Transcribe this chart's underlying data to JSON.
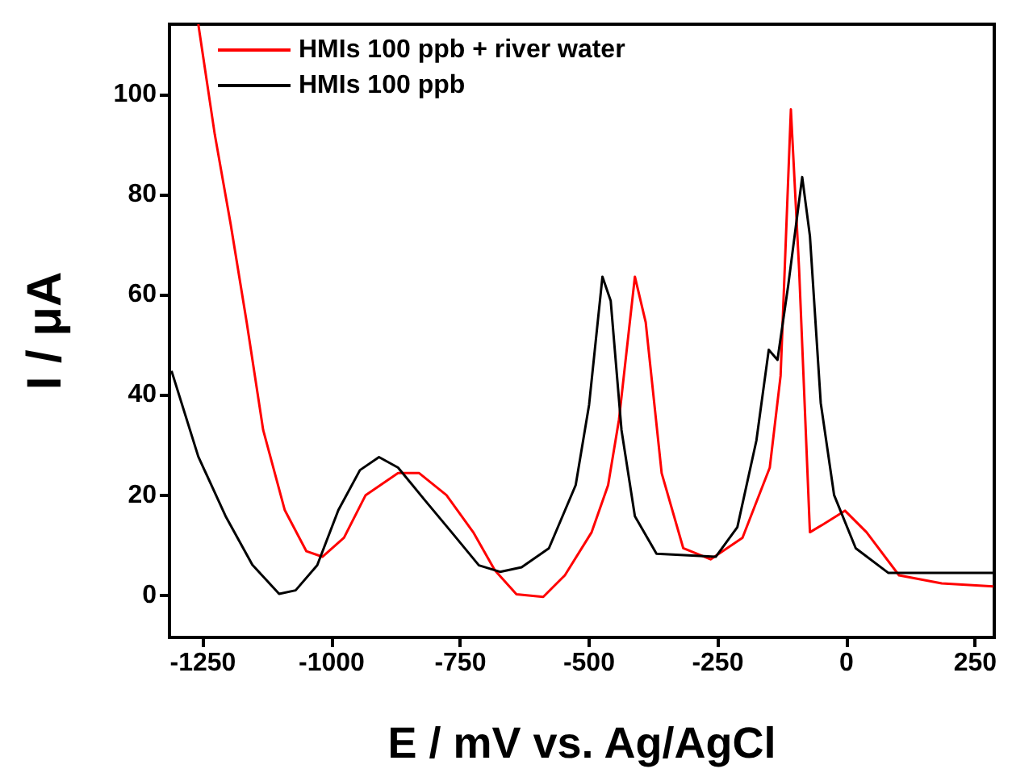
{
  "chart_data": {
    "type": "line",
    "xlabel": "E / mV vs. Ag/AgCl",
    "ylabel": "I / μA",
    "xlim": [
      -1315,
      287
    ],
    "ylim": [
      -8.4,
      114
    ],
    "xticks": [
      -1250,
      -1000,
      -750,
      -500,
      -250,
      0,
      250
    ],
    "yticks": [
      0,
      20,
      40,
      60,
      80,
      100
    ],
    "grid": false,
    "legend": "top left",
    "marker": "none",
    "series": [
      {
        "name": "HMIs 100 ppb + river water",
        "color": "#ff0000",
        "x": [
          -1259,
          -1227,
          -1196,
          -1165,
          -1133,
          -1091,
          -1049,
          -1018,
          -976,
          -934,
          -871,
          -830,
          -777,
          -725,
          -683,
          -641,
          -589,
          -547,
          -495,
          -463,
          -442,
          -411,
          -390,
          -359,
          -317,
          -264,
          -202,
          -149,
          -128,
          -108,
          -92,
          -71,
          -45,
          -3,
          39,
          102,
          185,
          285
        ],
        "values": [
          114,
          92,
          74,
          54.5,
          33,
          17,
          8.8,
          7.7,
          11.5,
          20,
          24.4,
          24.4,
          20,
          12.6,
          5,
          0.2,
          -0.3,
          4,
          12.6,
          22,
          35,
          63.6,
          54.5,
          24.4,
          9.4,
          7.2,
          11.5,
          25.5,
          43.8,
          97,
          65,
          12.6,
          14.2,
          16.9,
          12.6,
          4,
          2.4,
          1.8
        ]
      },
      {
        "name": "HMIs 100 ppb",
        "color": "#000000",
        "x": [
          -1311,
          -1259,
          -1206,
          -1154,
          -1102,
          -1070,
          -1028,
          -987,
          -945,
          -908,
          -871,
          -819,
          -767,
          -714,
          -673,
          -631,
          -578,
          -526,
          -500,
          -474,
          -458,
          -437,
          -411,
          -369,
          -254,
          -212,
          -175,
          -151,
          -134,
          -113,
          -86,
          -71,
          -50,
          -24,
          18,
          81,
          285
        ],
        "values": [
          44.8,
          27.7,
          15.8,
          6.1,
          0.3,
          1,
          6,
          17,
          25,
          27.6,
          25.5,
          19,
          12.6,
          6,
          4.7,
          5.6,
          9.4,
          22,
          38,
          63.6,
          58.8,
          33,
          15.8,
          8.3,
          7.7,
          13.6,
          30.9,
          49,
          47,
          62,
          83.5,
          71.7,
          38.4,
          20,
          9.4,
          4.5,
          4.5
        ]
      }
    ]
  }
}
